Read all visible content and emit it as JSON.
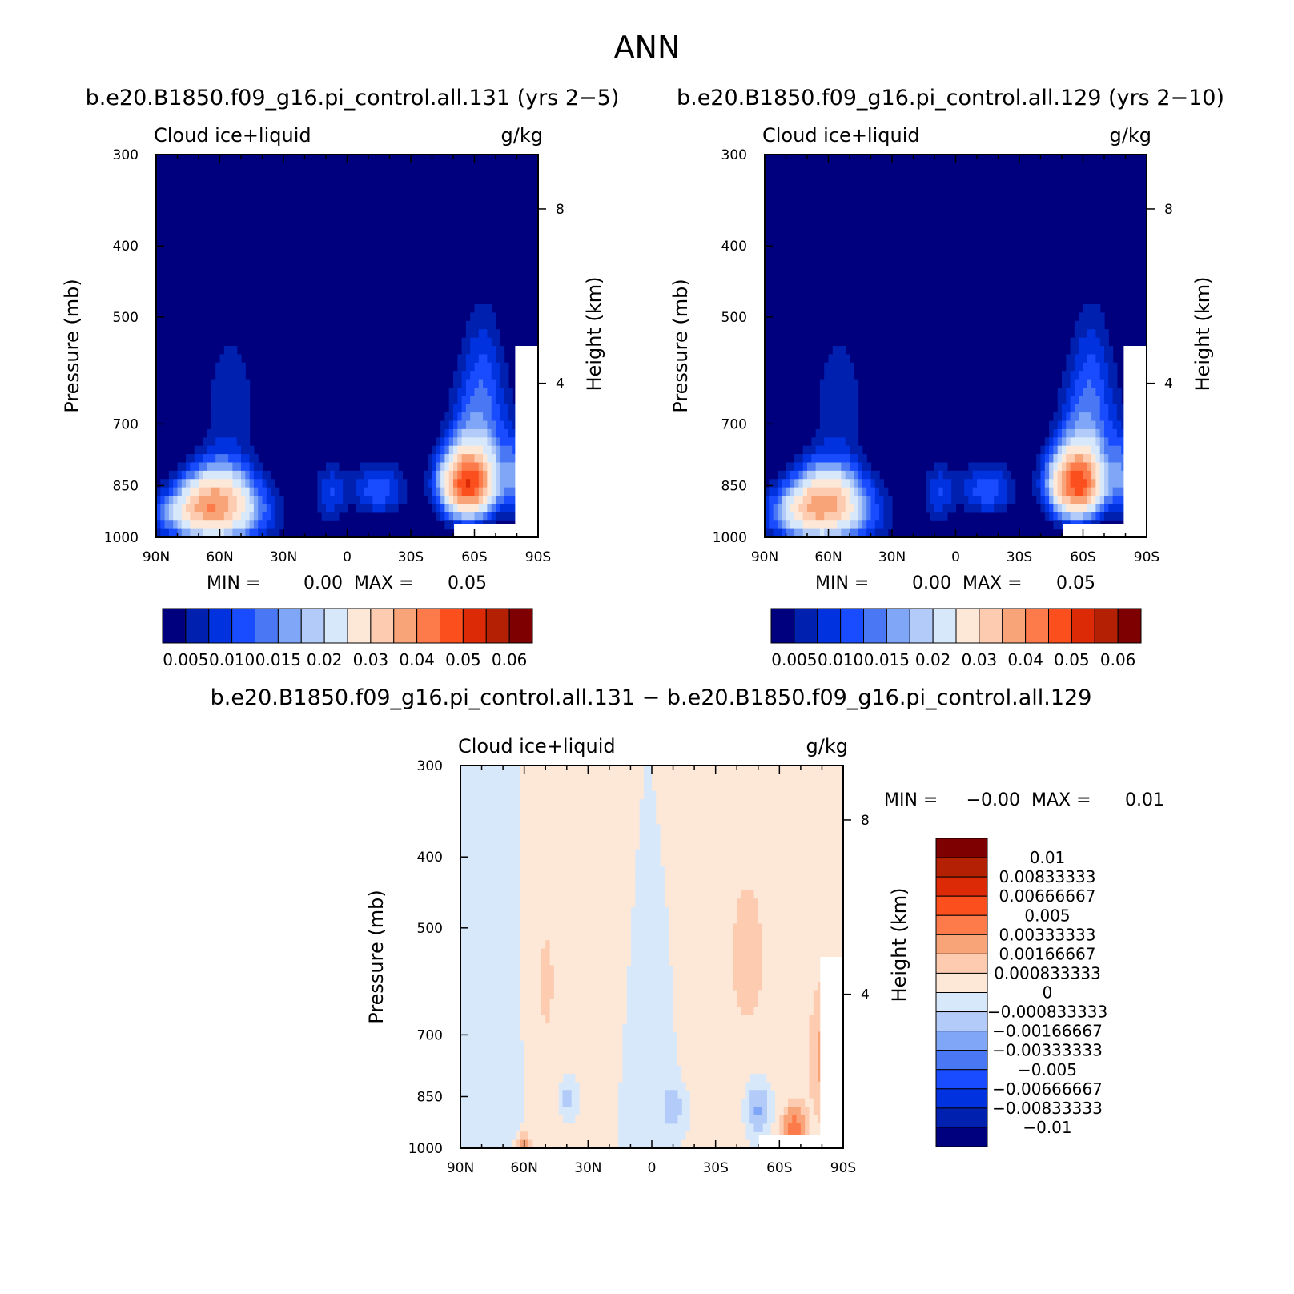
{
  "figure": {
    "title": "ANN",
    "panel_a_header": "b.e20.B1850.f09_g16.pi_control.all.131 (yrs 2−5)",
    "panel_b_header": "b.e20.B1850.f09_g16.pi_control.all.129 (yrs 2−10)",
    "diff_header": "b.e20.B1850.f09_g16.pi_control.all.131 − b.e20.B1850.f09_g16.pi_control.all.129"
  },
  "colors": {
    "blue_red_16": [
      "#00007f",
      "#0020b0",
      "#0032e0",
      "#1a4cff",
      "#4a78f5",
      "#7fa6f7",
      "#b3cbf8",
      "#d8e8fb",
      "#fde8d8",
      "#fccbb0",
      "#f9a478",
      "#fd7a4a",
      "#fc4f1e",
      "#dd2a06",
      "#b32004",
      "#7e0000"
    ],
    "diff_14": [
      "#00007f",
      "#0020b0",
      "#0032e0",
      "#1a4cff",
      "#4a78f5",
      "#7fa6f7",
      "#b3cbf8",
      "#d8e8fb",
      "#fde8d8",
      "#fccbb0",
      "#f9a478",
      "#fd7a4a",
      "#fc4f1e",
      "#dd2a06",
      "#b32004",
      "#7e0000"
    ]
  },
  "chart_data": [
    {
      "type": "heatmap",
      "title": "b.e20.B1850.f09_g16.pi_control.all.131 (yrs 2−5)",
      "left_title": "Cloud ice+liquid",
      "units": "g/kg",
      "ylabel": "Pressure (mb)",
      "y2label": "Height (km)",
      "x_tick_labels": [
        "90N",
        "60N",
        "30N",
        "0",
        "30S",
        "60S",
        "90S"
      ],
      "x_ticks": [
        90,
        60,
        30,
        0,
        -30,
        -60,
        -90
      ],
      "y_tick_labels": [
        "300",
        "400",
        "500",
        "700",
        "850",
        "1000"
      ],
      "y_ticks": [
        300,
        400,
        500,
        700,
        850,
        1000
      ],
      "y2_tick_labels": [
        "8",
        "4"
      ],
      "y2_ticks_km": [
        8,
        4
      ],
      "min_label": "MIN =",
      "min_value": "0.00",
      "max_label": "MAX =",
      "max_value": "0.05",
      "colorbar_labels": [
        "0.005",
        "0.010",
        "0.015",
        "0.02",
        "0.03",
        "0.04",
        "0.05",
        "0.06"
      ],
      "blobs": [
        {
          "lat": 62,
          "p": 880,
          "sx": 16,
          "sy": 95,
          "amp": 0.022
        },
        {
          "lat": 52,
          "p": 930,
          "sx": 22,
          "sy": 110,
          "amp": 0.014
        },
        {
          "lat": 75,
          "p": 930,
          "sx": 18,
          "sy": 80,
          "amp": 0.016
        },
        {
          "lat": 55,
          "p": 650,
          "sx": 15,
          "sy": 170,
          "amp": 0.007
        },
        {
          "lat": 8,
          "p": 870,
          "sx": 8,
          "sy": 90,
          "amp": 0.009
        },
        {
          "lat": 10,
          "p": 560,
          "sx": 7,
          "sy": 140,
          "amp": 0.005
        },
        {
          "lat": 13,
          "p": 330,
          "sx": 5,
          "sy": 50,
          "amp": 0.004
        },
        {
          "lat": -15,
          "p": 860,
          "sx": 14,
          "sy": 80,
          "amp": 0.012
        },
        {
          "lat": -57,
          "p": 845,
          "sx": 13,
          "sy": 95,
          "amp": 0.047
        },
        {
          "lat": -62,
          "p": 700,
          "sx": 15,
          "sy": 140,
          "amp": 0.01
        },
        {
          "lat": -64,
          "p": 570,
          "sx": 12,
          "sy": 160,
          "amp": 0.006
        },
        {
          "lat": -80,
          "p": 830,
          "sx": 7,
          "sy": 120,
          "amp": 0.012
        }
      ]
    },
    {
      "type": "heatmap",
      "title": "b.e20.B1850.f09_g16.pi_control.all.129 (yrs 2−10)",
      "left_title": "Cloud ice+liquid",
      "units": "g/kg",
      "ylabel": "Pressure (mb)",
      "y2label": "Height (km)",
      "x_tick_labels": [
        "90N",
        "60N",
        "30N",
        "0",
        "30S",
        "60S",
        "90S"
      ],
      "x_ticks": [
        90,
        60,
        30,
        0,
        -30,
        -60,
        -90
      ],
      "y_tick_labels": [
        "300",
        "400",
        "500",
        "700",
        "850",
        "1000"
      ],
      "y_ticks": [
        300,
        400,
        500,
        700,
        850,
        1000
      ],
      "y2_tick_labels": [
        "8",
        "4"
      ],
      "y2_ticks_km": [
        8,
        4
      ],
      "min_label": "MIN =",
      "min_value": "0.00",
      "max_label": "MAX =",
      "max_value": "0.05",
      "colorbar_labels": [
        "0.005",
        "0.010",
        "0.015",
        "0.02",
        "0.03",
        "0.04",
        "0.05",
        "0.06"
      ],
      "blobs": [
        {
          "lat": 62,
          "p": 880,
          "sx": 16,
          "sy": 95,
          "amp": 0.021
        },
        {
          "lat": 52,
          "p": 930,
          "sx": 22,
          "sy": 110,
          "amp": 0.014
        },
        {
          "lat": 75,
          "p": 930,
          "sx": 18,
          "sy": 80,
          "amp": 0.015
        },
        {
          "lat": 55,
          "p": 650,
          "sx": 15,
          "sy": 170,
          "amp": 0.007
        },
        {
          "lat": 8,
          "p": 870,
          "sx": 8,
          "sy": 90,
          "amp": 0.009
        },
        {
          "lat": 10,
          "p": 560,
          "sx": 7,
          "sy": 140,
          "amp": 0.005
        },
        {
          "lat": 13,
          "p": 330,
          "sx": 5,
          "sy": 50,
          "amp": 0.004
        },
        {
          "lat": -15,
          "p": 860,
          "sx": 14,
          "sy": 80,
          "amp": 0.012
        },
        {
          "lat": -57,
          "p": 845,
          "sx": 13,
          "sy": 95,
          "amp": 0.046
        },
        {
          "lat": -62,
          "p": 700,
          "sx": 15,
          "sy": 140,
          "amp": 0.01
        },
        {
          "lat": -64,
          "p": 570,
          "sx": 12,
          "sy": 160,
          "amp": 0.006
        },
        {
          "lat": -80,
          "p": 830,
          "sx": 7,
          "sy": 120,
          "amp": 0.012
        }
      ]
    },
    {
      "type": "heatmap",
      "title": "b.e20.B1850.f09_g16.pi_control.all.131 − b.e20.B1850.f09_g16.pi_control.all.129",
      "left_title": "Cloud ice+liquid",
      "units": "g/kg",
      "ylabel": "Pressure (mb)",
      "y2label": "Height (km)",
      "x_tick_labels": [
        "90N",
        "60N",
        "30N",
        "0",
        "30S",
        "60S",
        "90S"
      ],
      "x_ticks": [
        90,
        60,
        30,
        0,
        -30,
        -60,
        -90
      ],
      "y_tick_labels": [
        "300",
        "400",
        "500",
        "700",
        "850",
        "1000"
      ],
      "y_ticks": [
        300,
        400,
        500,
        700,
        850,
        1000
      ],
      "y2_tick_labels": [
        "8",
        "4"
      ],
      "y2_ticks_km": [
        8,
        4
      ],
      "min_label": "MIN =",
      "min_value": "−0.00",
      "max_label": "MAX =",
      "max_value": "0.01",
      "colorbar_labels": [
        "0.01",
        "0.00833333",
        "0.00666667",
        "0.005",
        "0.00333333",
        "0.00166667",
        "0.000833333",
        "0",
        "−0.000833333",
        "−0.00166667",
        "−0.00333333",
        "−0.005",
        "−0.00666667",
        "−0.00833333",
        "−0.01"
      ],
      "blobs": [
        {
          "lat": 50,
          "p": 600,
          "sx": 12,
          "sy": 300,
          "amp": 0.0009
        },
        {
          "lat": 20,
          "p": 600,
          "sx": 10,
          "sy": 300,
          "amp": 0.0008
        },
        {
          "lat": -45,
          "p": 550,
          "sx": 25,
          "sy": 400,
          "amp": 0.0009
        },
        {
          "lat": 70,
          "p": 650,
          "sx": 10,
          "sy": 300,
          "amp": -0.0008
        },
        {
          "lat": 5,
          "p": 750,
          "sx": 12,
          "sy": 250,
          "amp": -0.0008
        },
        {
          "lat": -50,
          "p": 880,
          "sx": 6,
          "sy": 80,
          "amp": -0.0022
        },
        {
          "lat": -10,
          "p": 880,
          "sx": 5,
          "sy": 60,
          "amp": -0.0015
        },
        {
          "lat": 40,
          "p": 850,
          "sx": 4,
          "sy": 50,
          "amp": -0.0015
        },
        {
          "lat": -67,
          "p": 950,
          "sx": 5,
          "sy": 70,
          "amp": 0.0045
        },
        {
          "lat": -80,
          "p": 760,
          "sx": 6,
          "sy": 180,
          "amp": 0.0018
        },
        {
          "lat": 60,
          "p": 990,
          "sx": 3,
          "sy": 30,
          "amp": 0.0035
        }
      ]
    }
  ]
}
